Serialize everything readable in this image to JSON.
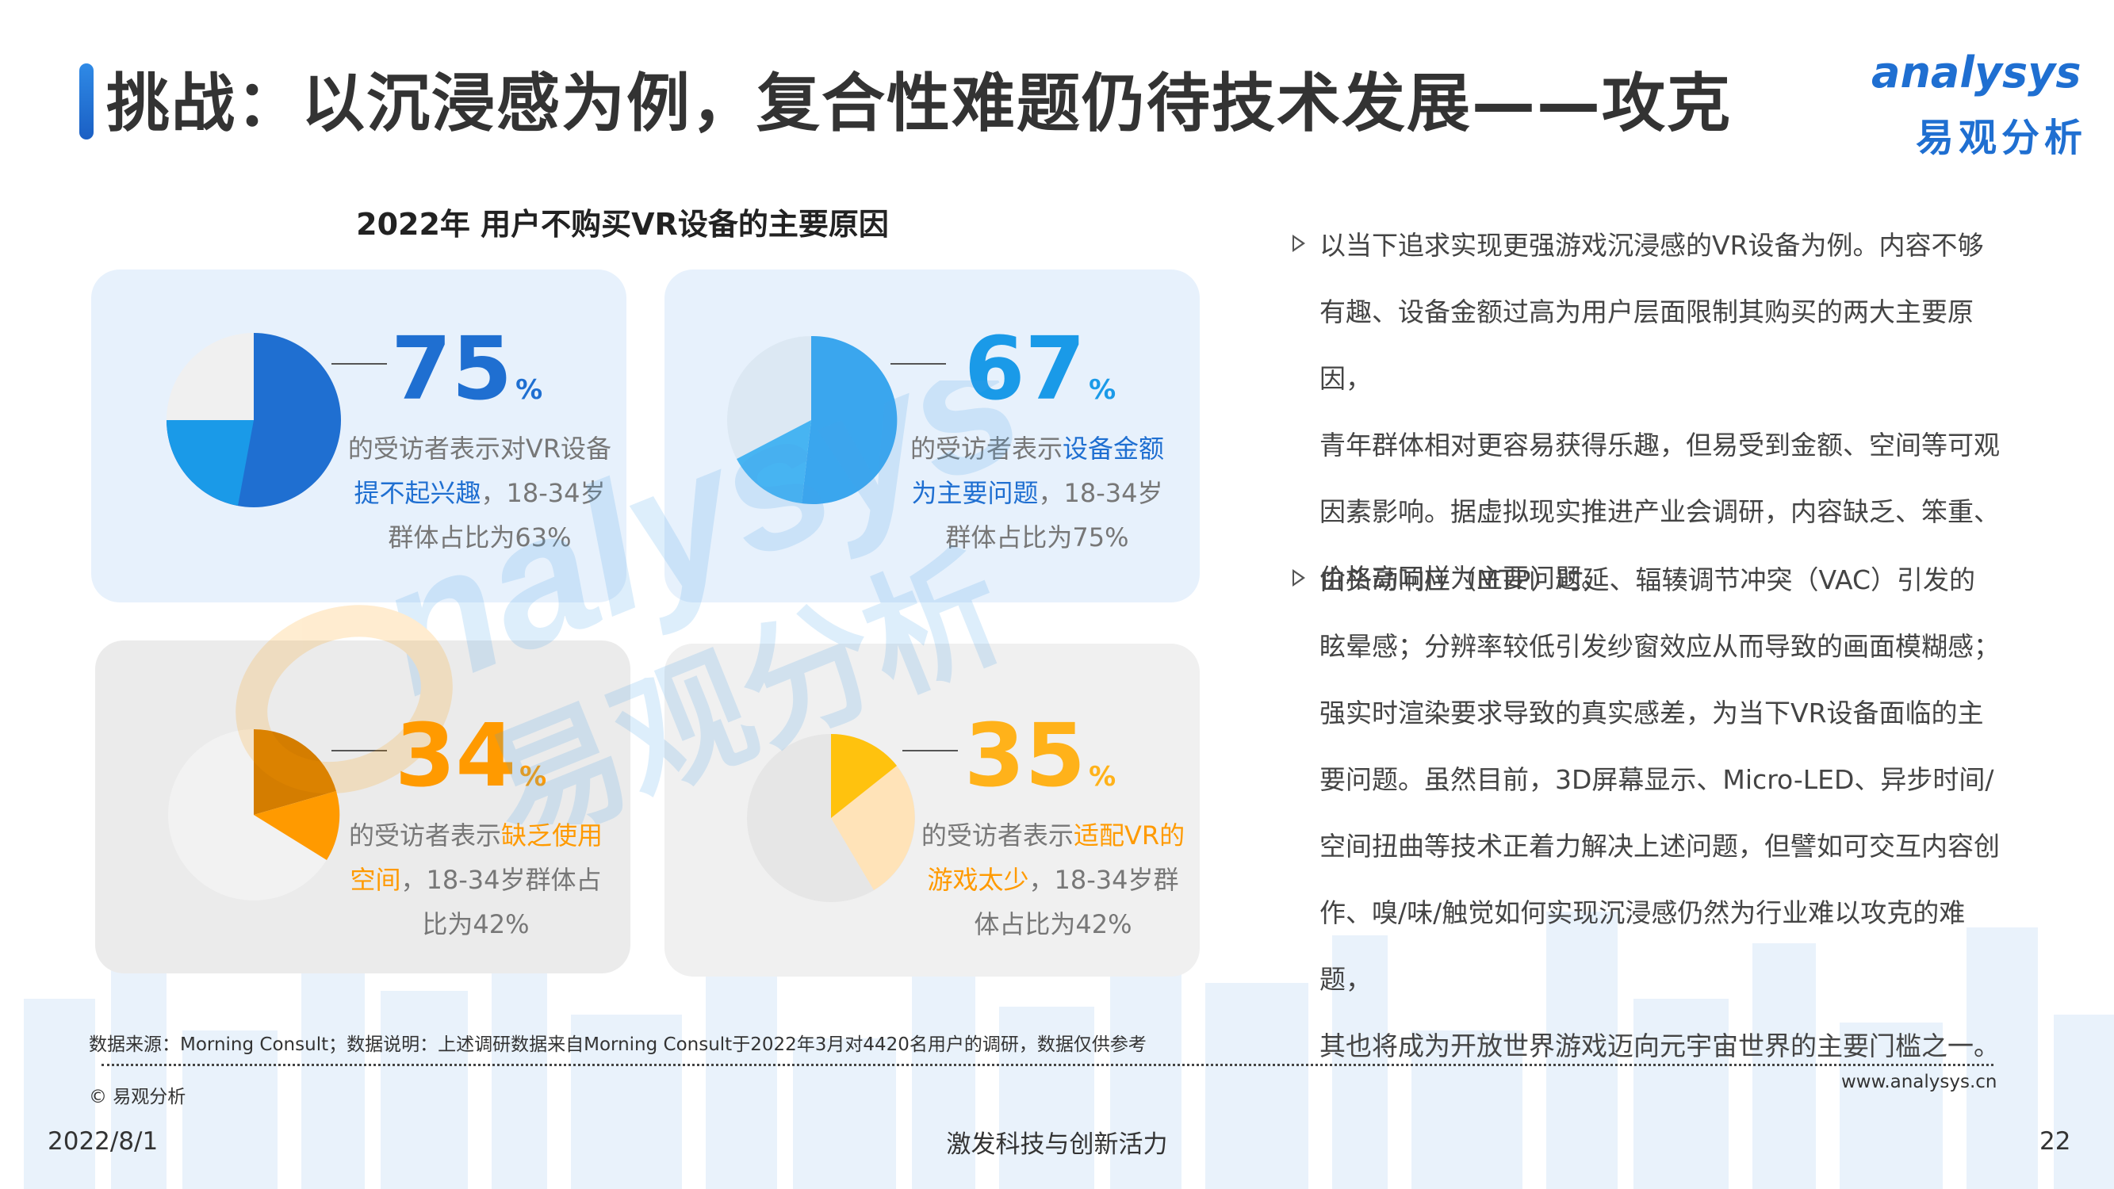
{
  "header": {
    "title": "挑战：以沉浸感为例，复合性难题仍待技术发展——攻克",
    "logo_en": "analysys",
    "logo_cn": "易观分析"
  },
  "chart_title": "2022年 用户不购买VR设备的主要原因",
  "colors": {
    "blue": "#1f6fd1",
    "light_blue": "#3aa6ee",
    "orange": "#ff9a00",
    "yellow": "#ffc20e"
  },
  "chart_data": {
    "type": "pie",
    "title": "2022年 用户不购买VR设备的主要原因",
    "items": [
      {
        "value": 75,
        "unit": "%",
        "desc_pre": "的受访者表示对VR设备",
        "highlight": "提不起兴趣",
        "desc_post": "，18-34岁群体占比为63%",
        "sub_share": 63
      },
      {
        "value": 67,
        "unit": "%",
        "desc_pre": "的受访者表示",
        "highlight": "设备金额为主要问题",
        "desc_post": "，18-34岁群体占比为75%",
        "sub_share": 75
      },
      {
        "value": 34,
        "unit": "%",
        "desc_pre": "的受访者表示",
        "highlight": "缺乏使用空间",
        "desc_post": "，18-34岁群体占比为42%",
        "sub_share": 42
      },
      {
        "value": 35,
        "unit": "%",
        "desc_pre": "的受访者表示",
        "highlight": "适配VR的游戏太少",
        "desc_post": "，18-34岁群体占比为42%",
        "sub_share": 42
      }
    ]
  },
  "bullets": [
    "以当下追求实现更强游戏沉浸感的VR设备为例。内容不够有趣、设备金额过高为用户层面限制其购买的两大主要原因，青年群体相对更容易获得乐趣，但易受到金额、空间等可观因素影响。据虚拟现实推进产业会调研，内容缺乏、笨重、价格高同样为主要问题。",
    "由头动响应（MTP）时延、辐辏调节冲突（VAC）引发的眩晕感；分辨率较低引发纱窗效应从而导致的画面模糊感；强实时渲染要求导致的真实感差，为当下VR设备面临的主要问题。虽然目前，3D屏幕显示、Micro-LED、异步时间/空间扭曲等技术正着力解决上述问题，但譬如可交互内容创作、嗅/味/触觉如何实现沉浸感仍然为行业难以攻克的难题，其也将成为开放世界游戏迈向元宇宙世界的主要门槛之一。"
  ],
  "bullet_lines": [
    [
      "以当下追求实现更强游戏沉浸感的VR设备为例。内容不够",
      "有趣、设备金额过高为用户层面限制其购买的两大主要原因，",
      "青年群体相对更容易获得乐趣，但易受到金额、空间等可观",
      "因素影响。据虚拟现实推进产业会调研，内容缺乏、笨重、",
      "价格高同样为主要问题。"
    ],
    [
      "由头动响应（MTP）时延、辐辏调节冲突（VAC）引发的",
      "眩晕感；分辨率较低引发纱窗效应从而导致的画面模糊感；",
      "强实时渲染要求导致的真实感差，为当下VR设备面临的主",
      "要问题。虽然目前，3D屏幕显示、Micro-LED、异步时间/",
      "空间扭曲等技术正着力解决上述问题，但譬如可交互内容创",
      "作、嗅/味/触觉如何实现沉浸感仍然为行业难以攻克的难题，",
      "其也将成为开放世界游戏迈向元宇宙世界的主要门槛之一。"
    ]
  ],
  "footer": {
    "source": "数据来源：Morning Consult；数据说明：上述调研数据来自Morning Consult于2022年3月对4420名用户的调研，数据仅供参考",
    "copyright": "© 易观分析",
    "website": "www.analysys.cn",
    "date": "2022/8/1",
    "slogan": "激发科技与创新活力",
    "page": "22"
  }
}
